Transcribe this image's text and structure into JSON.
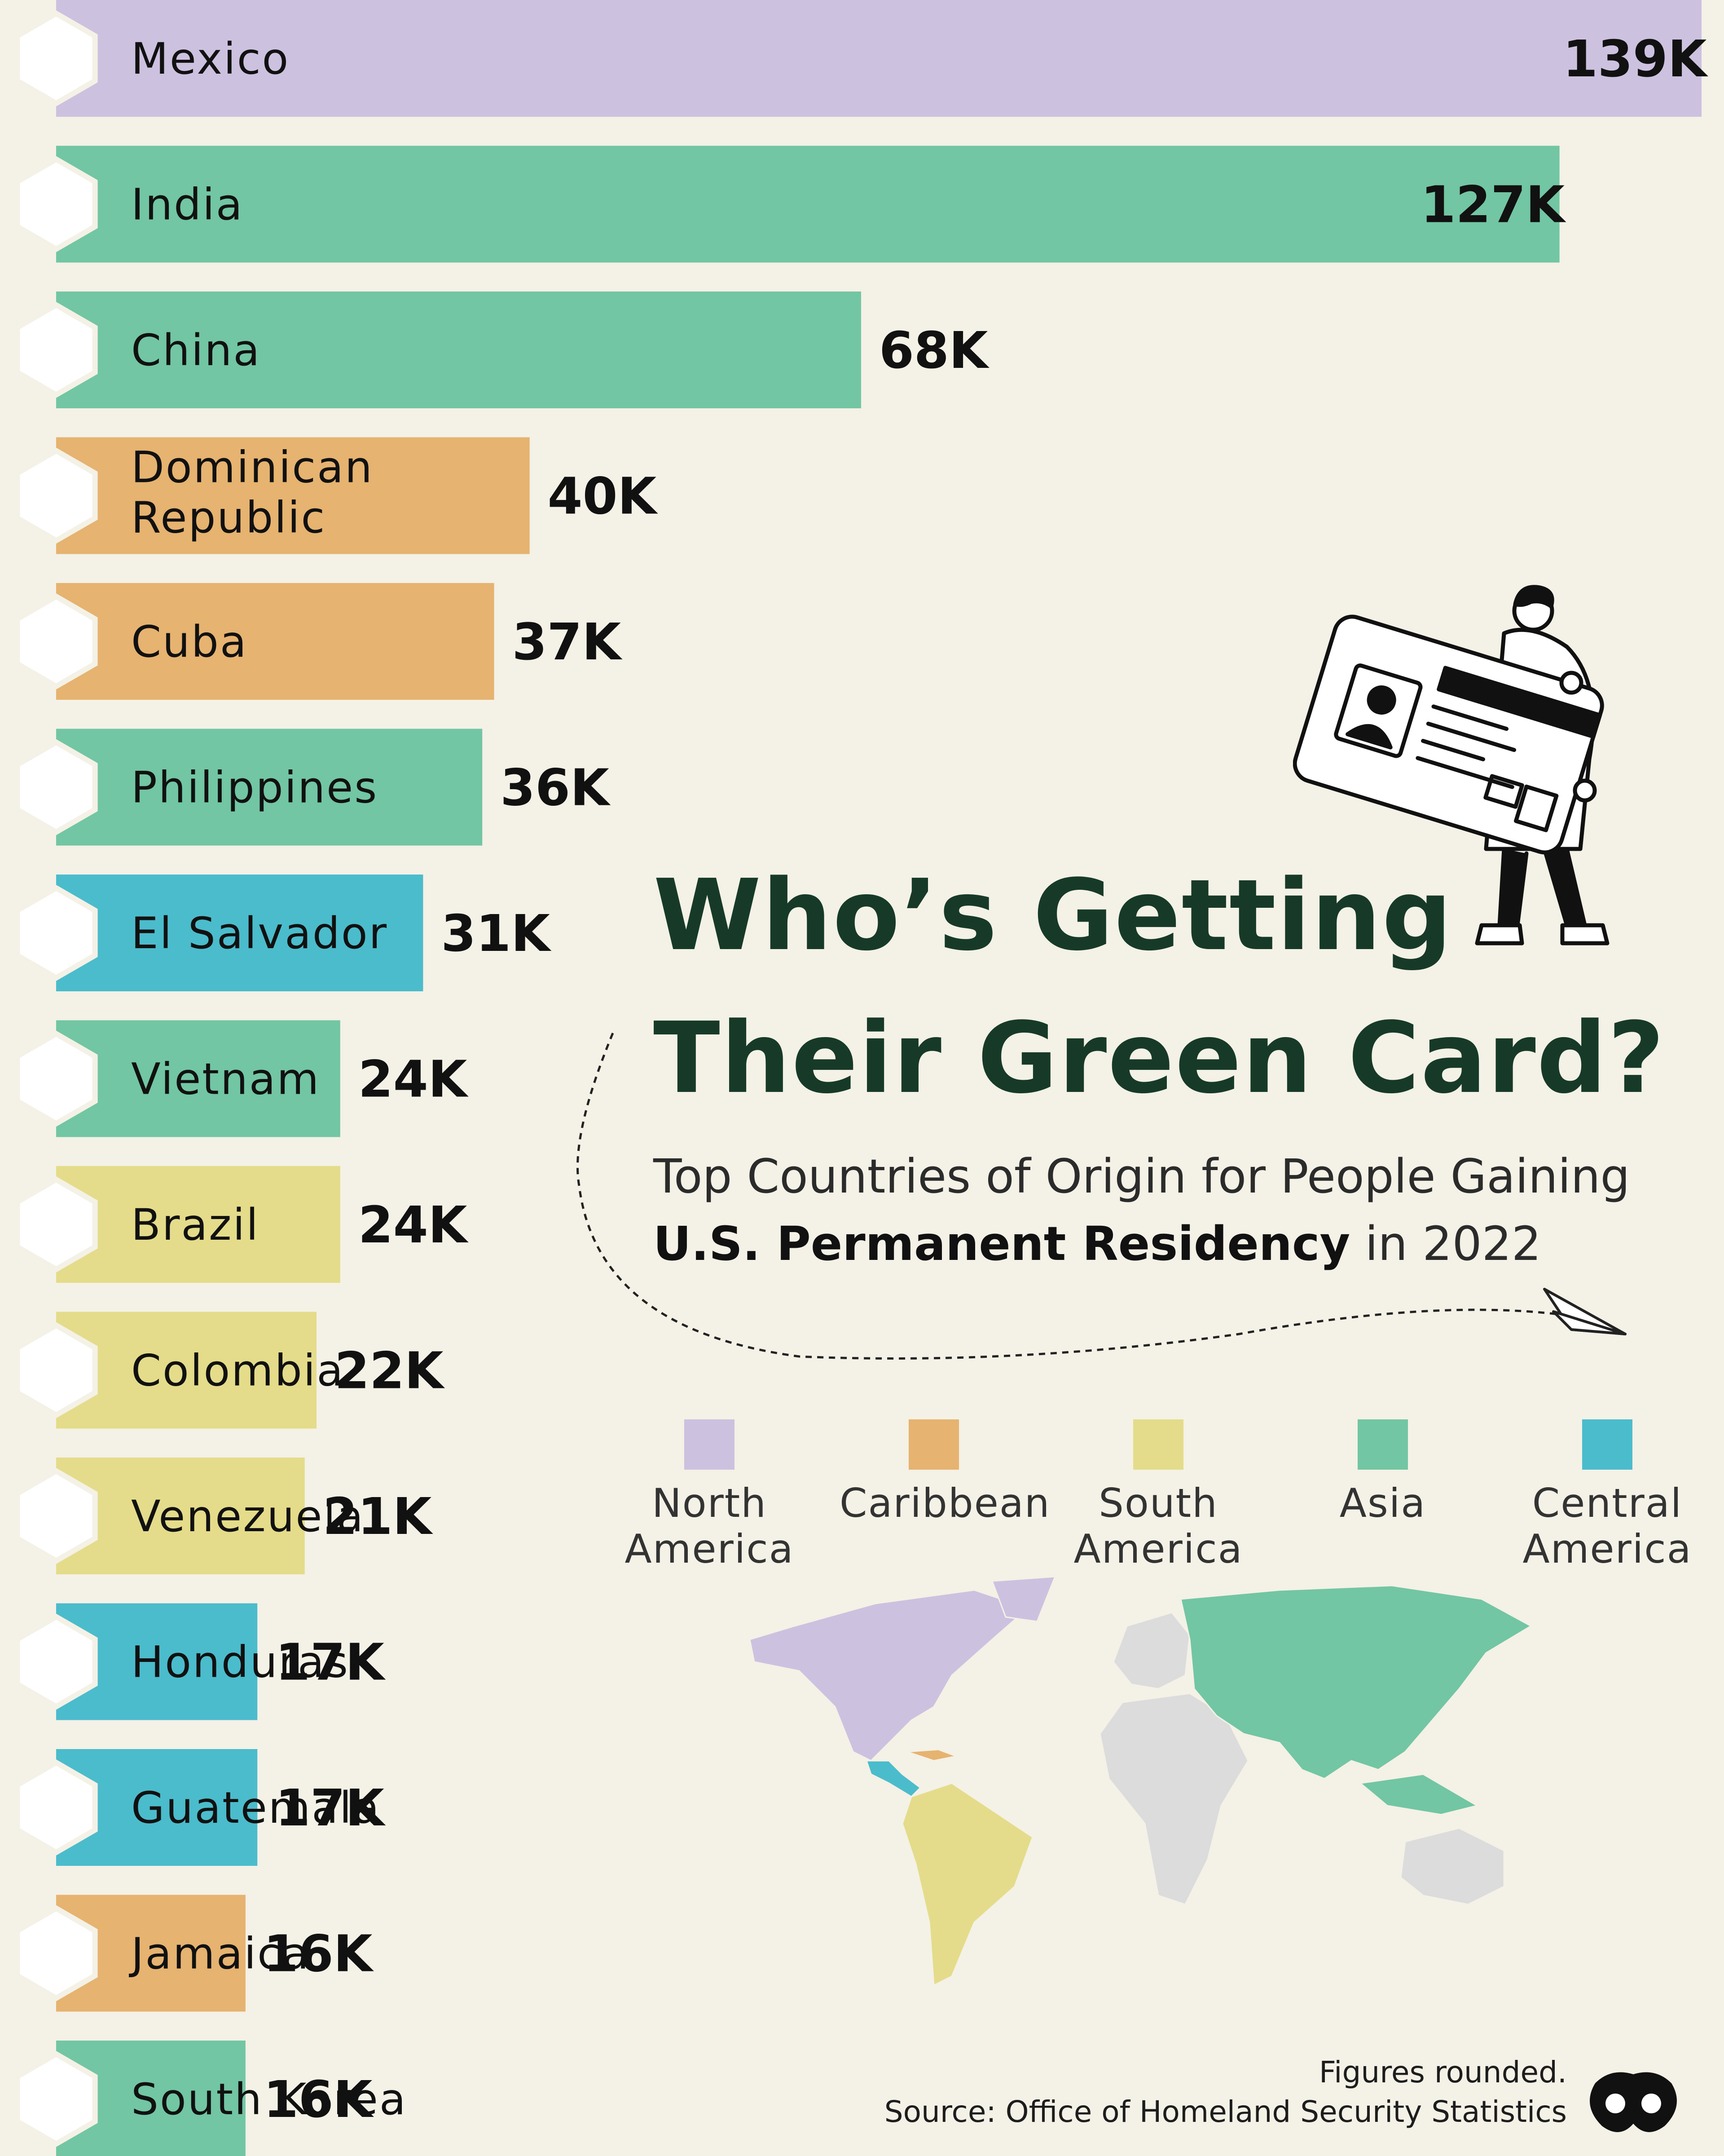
{
  "title": [
    "Who’s Getting",
    "Their Green Card?"
  ],
  "subtitle": {
    "line1": "Top Countries of Origin for People Gaining",
    "line2_bold": "U.S. Permanent Residency",
    "line2_rest": " in 2022"
  },
  "legend": [
    {
      "name": "North America",
      "lines": [
        "North",
        "America"
      ],
      "color": "#cdc1e0"
    },
    {
      "name": "Caribbean",
      "lines": [
        "Caribbean"
      ],
      "color": "#e6b370"
    },
    {
      "name": "South America",
      "lines": [
        "South",
        "America"
      ],
      "color": "#e4dc8a"
    },
    {
      "name": "Asia",
      "lines": [
        "Asia"
      ],
      "color": "#72c6a3"
    },
    {
      "name": "Central America",
      "lines": [
        "Central",
        "America"
      ],
      "color": "#4bbccc"
    }
  ],
  "chart_data": {
    "type": "bar",
    "orientation": "horizontal",
    "unit": "K",
    "categories": [
      "Mexico",
      "India",
      "China",
      "Dominican Republic",
      "Cuba",
      "Philippines",
      "El Salvador",
      "Vietnam",
      "Brazil",
      "Colombia",
      "Venezuela",
      "Honduras",
      "Guatemala",
      "Jamaica",
      "South Korea"
    ],
    "category_lines": [
      [
        "Mexico"
      ],
      [
        "India"
      ],
      [
        "China"
      ],
      [
        "Dominican",
        "Republic"
      ],
      [
        "Cuba"
      ],
      [
        "Philippines"
      ],
      [
        "El Salvador"
      ],
      [
        "Vietnam"
      ],
      [
        "Brazil"
      ],
      [
        "Colombia"
      ],
      [
        "Venezuela"
      ],
      [
        "Honduras"
      ],
      [
        "Guatemala"
      ],
      [
        "Jamaica"
      ],
      [
        "South Korea"
      ]
    ],
    "values": [
      139,
      127,
      68,
      40,
      37,
      36,
      31,
      24,
      24,
      22,
      21,
      17,
      17,
      16,
      16
    ],
    "value_labels": [
      "139K",
      "127K",
      "68K",
      "40K",
      "37K",
      "36K",
      "31K",
      "24K",
      "24K",
      "22K",
      "21K",
      "17K",
      "17K",
      "16K",
      "16K"
    ],
    "regions": [
      "North America",
      "Asia",
      "Asia",
      "Caribbean",
      "Caribbean",
      "Asia",
      "Central America",
      "Asia",
      "South America",
      "South America",
      "South America",
      "Central America",
      "Central America",
      "Caribbean",
      "Asia"
    ],
    "flag_icons": [
      "mexico-flag-icon",
      "india-flag-icon",
      "china-flag-icon",
      "dominican-republic-flag-icon",
      "cuba-flag-icon",
      "philippines-flag-icon",
      "el-salvador-flag-icon",
      "vietnam-flag-icon",
      "brazil-flag-icon",
      "colombia-flag-icon",
      "venezuela-flag-icon",
      "honduras-flag-icon",
      "guatemala-flag-icon",
      "jamaica-flag-icon",
      "south-korea-flag-icon"
    ]
  },
  "footer": {
    "note": "Figures rounded.",
    "source": "Source: Office of Homeland Security Statistics"
  },
  "icons": {
    "illustration": "person-holding-green-card-icon",
    "paper_plane": "paper-plane-icon",
    "world_map": "world-map-icon",
    "logo": "visual-capitalist-logo-icon"
  }
}
